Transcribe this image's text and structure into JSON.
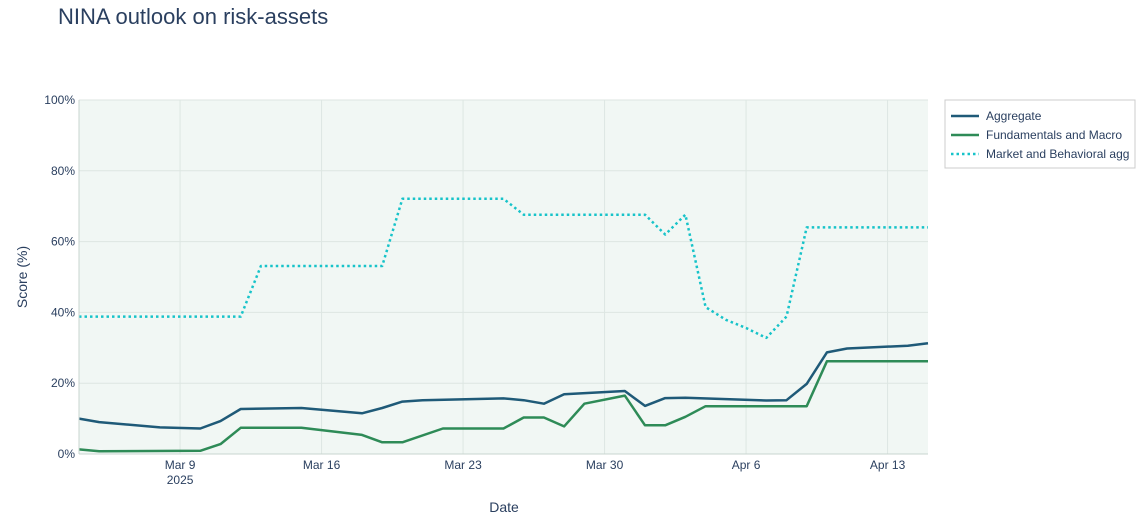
{
  "colors": {
    "plot_bg": "#f1f7f4",
    "grid": "#dde6e2",
    "aggregate": "#1f5a78",
    "fundamentals": "#2e8b57",
    "market": "#17c3c9"
  },
  "chart_data": {
    "type": "line",
    "title": "NINA outlook on risk-assets",
    "xlabel": "Date",
    "ylabel": "Score (%)",
    "ylim": [
      0,
      100
    ],
    "y_ticks": [
      0,
      20,
      40,
      60,
      80,
      100
    ],
    "y_tick_labels": [
      "0%",
      "20%",
      "40%",
      "60%",
      "80%",
      "100%"
    ],
    "xlim": [
      "2025-03-04",
      "2025-04-15"
    ],
    "x_ticks": [
      "2025-03-09",
      "2025-03-16",
      "2025-03-23",
      "2025-03-30",
      "2025-04-06",
      "2025-04-13"
    ],
    "x_tick_labels": [
      "Mar 9",
      "Mar 16",
      "Mar 23",
      "Mar 30",
      "Apr 6",
      "Apr 13"
    ],
    "x_tick_sublabel": "2025",
    "grid": true,
    "legend_position": "top-right, outside plot",
    "series": [
      {
        "name": "Aggregate",
        "style": "solid",
        "x": [
          "2025-03-04",
          "2025-03-05",
          "2025-03-08",
          "2025-03-10",
          "2025-03-11",
          "2025-03-12",
          "2025-03-15",
          "2025-03-18",
          "2025-03-19",
          "2025-03-20",
          "2025-03-21",
          "2025-03-25",
          "2025-03-26",
          "2025-03-27",
          "2025-03-28",
          "2025-03-31",
          "2025-04-01",
          "2025-04-02",
          "2025-04-03",
          "2025-04-07",
          "2025-04-08",
          "2025-04-09",
          "2025-04-10",
          "2025-04-11",
          "2025-04-14",
          "2025-04-15"
        ],
        "values": [
          10,
          9,
          7.5,
          7.2,
          9.3,
          12.7,
          13,
          11.5,
          13,
          14.8,
          15.2,
          15.7,
          15.2,
          14.2,
          16.9,
          17.8,
          13.6,
          15.8,
          15.9,
          15.1,
          15.2,
          19.8,
          28.7,
          29.8,
          30.6,
          31.3
        ]
      },
      {
        "name": "Fundamentals and Macro",
        "style": "solid",
        "x": [
          "2025-03-04",
          "2025-03-05",
          "2025-03-10",
          "2025-03-11",
          "2025-03-12",
          "2025-03-15",
          "2025-03-18",
          "2025-03-19",
          "2025-03-20",
          "2025-03-22",
          "2025-03-25",
          "2025-03-26",
          "2025-03-27",
          "2025-03-28",
          "2025-03-29",
          "2025-03-31",
          "2025-04-01",
          "2025-04-02",
          "2025-04-03",
          "2025-04-04",
          "2025-04-09",
          "2025-04-10",
          "2025-04-15"
        ],
        "values": [
          1.3,
          0.8,
          0.9,
          2.8,
          7.4,
          7.4,
          5.4,
          3.3,
          3.3,
          7.2,
          7.2,
          10.3,
          10.3,
          7.8,
          14.2,
          16.5,
          8.1,
          8.1,
          10.5,
          13.5,
          13.5,
          26.2,
          26.2
        ]
      },
      {
        "name": "Market and Behavioral agg",
        "style": "dotted",
        "x": [
          "2025-03-04",
          "2025-03-12",
          "2025-03-13",
          "2025-03-19",
          "2025-03-20",
          "2025-03-25",
          "2025-03-26",
          "2025-04-01",
          "2025-04-02",
          "2025-04-03",
          "2025-04-04",
          "2025-04-05",
          "2025-04-06",
          "2025-04-07",
          "2025-04-08",
          "2025-04-09",
          "2025-04-10",
          "2025-04-15"
        ],
        "values": [
          38.8,
          38.8,
          53.1,
          53.1,
          72.1,
          72.1,
          67.6,
          67.6,
          62.0,
          67.6,
          41.5,
          37.9,
          35.6,
          32.8,
          38.8,
          64.0,
          64.0,
          64.0
        ]
      }
    ]
  }
}
